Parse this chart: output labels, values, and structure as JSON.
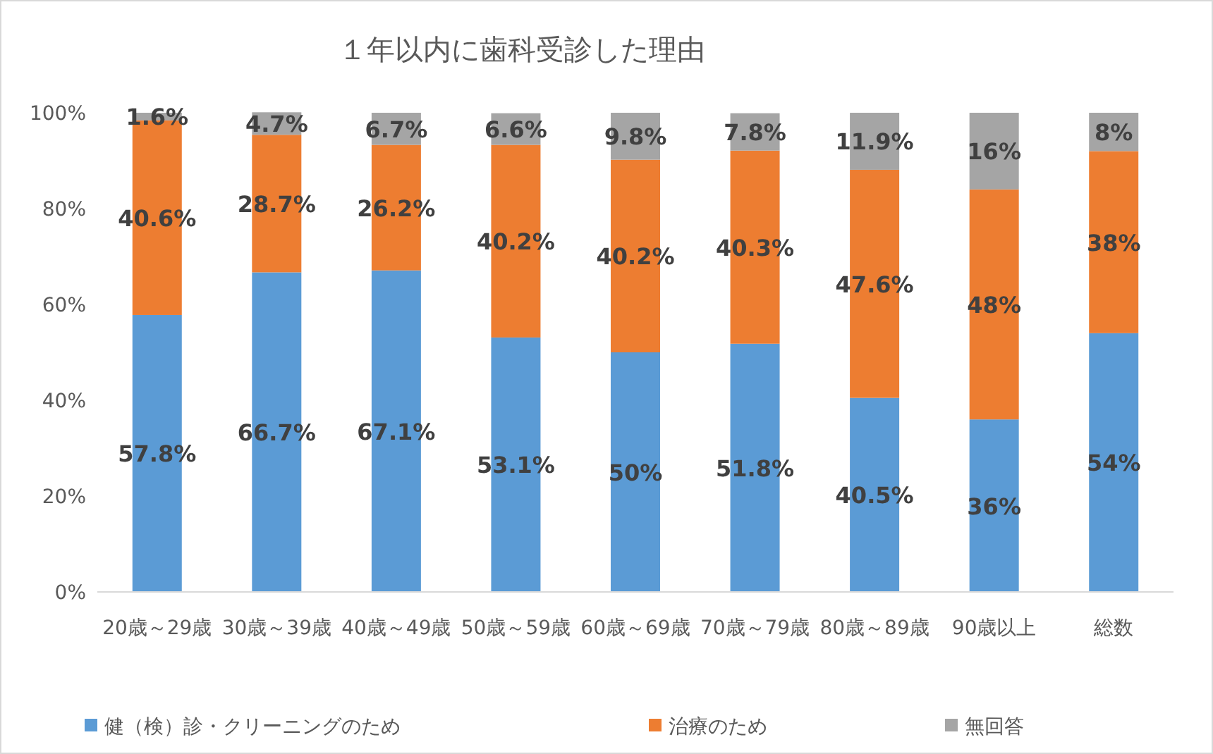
{
  "chart_data": {
    "type": "bar",
    "stacked": true,
    "title": "１年以内に歯科受診した理由",
    "categories": [
      "20歳～29歳",
      "30歳～39歳",
      "40歳～49歳",
      "50歳～59歳",
      "60歳～69歳",
      "70歳～79歳",
      "80歳～89歳",
      "90歳以上",
      "総数"
    ],
    "series": [
      {
        "name": "健（検）診・クリーニングのため",
        "color": "#5b9bd5",
        "values": [
          57.8,
          66.7,
          67.1,
          53.1,
          50,
          51.8,
          40.5,
          36,
          54
        ],
        "value_labels": [
          "57.8%",
          "66.7%",
          "67.1%",
          "53.1%",
          "50%",
          "51.8%",
          "40.5%",
          "36%",
          "54%"
        ]
      },
      {
        "name": "治療のため",
        "color": "#ed7d31",
        "values": [
          40.6,
          28.7,
          26.2,
          40.2,
          40.2,
          40.3,
          47.6,
          48,
          38
        ],
        "value_labels": [
          "40.6%",
          "28.7%",
          "26.2%",
          "40.2%",
          "40.2%",
          "40.3%",
          "47.6%",
          "48%",
          "38%"
        ]
      },
      {
        "name": "無回答",
        "color": "#a5a5a5",
        "values": [
          1.6,
          4.7,
          6.7,
          6.6,
          9.8,
          7.8,
          11.9,
          16,
          8
        ],
        "value_labels": [
          "1.6%",
          "4.7%",
          "6.7%",
          "6.6%",
          "9.8%",
          "7.8%",
          "11.9%",
          "16%",
          "8%"
        ]
      }
    ],
    "ylim": [
      0,
      100
    ],
    "yticks": [
      {
        "value": 0,
        "label": "0%"
      },
      {
        "value": 20,
        "label": "20%"
      },
      {
        "value": 40,
        "label": "40%"
      },
      {
        "value": 60,
        "label": "60%"
      },
      {
        "value": 80,
        "label": "80%"
      },
      {
        "value": 100,
        "label": "100%"
      }
    ],
    "grid": false,
    "legend": "bottom"
  }
}
